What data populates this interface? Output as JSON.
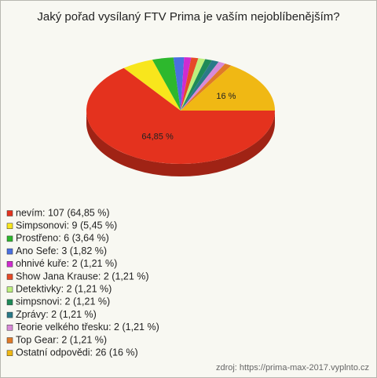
{
  "chart_data": {
    "type": "pie3d",
    "title": "Jaký pořad vysílaný FTV Prima je vaším nejoblíbenějším?",
    "values": [
      64.85,
      5.45,
      3.64,
      1.82,
      1.21,
      1.21,
      1.21,
      1.21,
      1.21,
      1.21,
      1.21,
      16
    ],
    "value_labels": [
      "nevím: 107 (64,85 %)",
      "Simpsonovi: 9 (5,45 %)",
      "Prostřeno: 6 (3,64 %)",
      "Ano Sefe: 3 (1,82 %)",
      "ohnivé kuře: 2 (1,21 %)",
      "Show Jana Krause: 2 (1,21 %)",
      "Detektivky: 2 (1,21 %)",
      "simpsnovi: 2 (1,21 %)",
      "Zprávy: 2 (1,21 %)",
      "Teorie velkého třesku: 2 (1,21 %)",
      "Top Gear: 2 (1,21 %)",
      "Ostatní odpovědi: 26 (16 %)"
    ],
    "slice_labels": [
      "64,85 %",
      null,
      null,
      null,
      null,
      null,
      null,
      null,
      null,
      null,
      null,
      "16 %"
    ],
    "colors": [
      "#e4321e",
      "#f8e61c",
      "#2db82d",
      "#4a70e0",
      "#d02bd0",
      "#e64a28",
      "#bdf07c",
      "#1e8a58",
      "#2a7a88",
      "#d88ad8",
      "#e07a28",
      "#f0b814"
    ],
    "source": "zdroj: https://prima-max-2017.vyplnto.cz"
  }
}
